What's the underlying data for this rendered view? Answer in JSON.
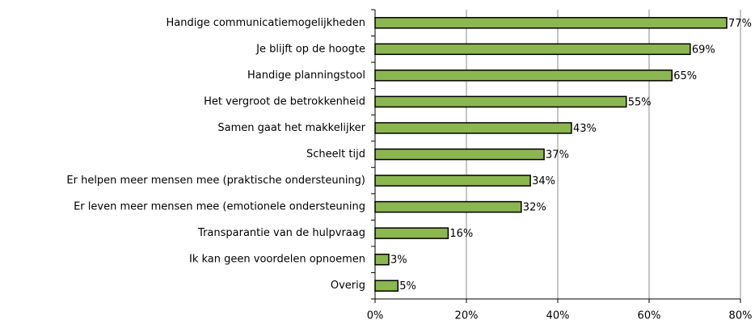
{
  "chart_data": {
    "type": "hbar",
    "categories": [
      "Handige communicatiemogelijkheden",
      "Je blijft op de hoogte",
      "Handige planningstool",
      "Het vergroot de betrokkenheid",
      "Samen gaat het makkelijker",
      "Scheelt tijd",
      "Er helpen meer mensen mee (praktische ondersteuning)",
      "Er leven meer mensen mee (emotionele ondersteuning",
      "Transparantie van de hulpvraag",
      "Ik kan geen voordelen opnoemen",
      "Overig"
    ],
    "values": [
      77,
      69,
      65,
      55,
      43,
      37,
      34,
      32,
      16,
      3,
      5
    ],
    "value_labels": [
      "77%",
      "69%",
      "65%",
      "55%",
      "43%",
      "37%",
      "34%",
      "32%",
      "16%",
      "3%",
      "5%"
    ],
    "color": "#8cb650",
    "xlim": [
      0,
      80
    ],
    "xticks": [
      {
        "value": 0,
        "label": "0%"
      },
      {
        "value": 20,
        "label": "20%"
      },
      {
        "value": 40,
        "label": "40%"
      },
      {
        "value": 60,
        "label": "60%"
      },
      {
        "value": 80,
        "label": "80%"
      }
    ],
    "grid": true
  }
}
